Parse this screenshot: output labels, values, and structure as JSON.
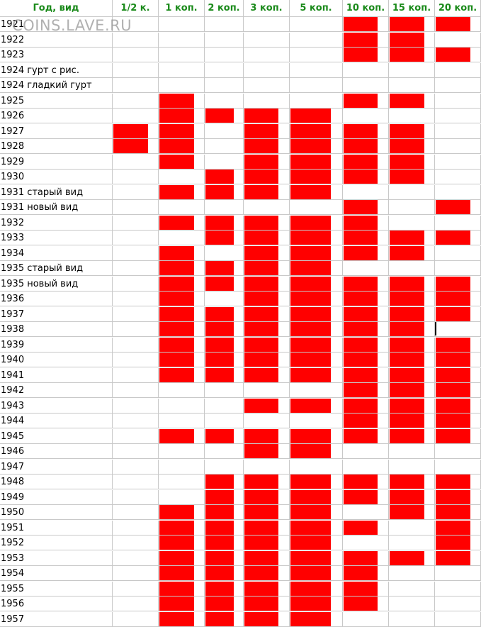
{
  "table": {
    "columns": [
      "Год, вид",
      "1/2 к.",
      "1 коп.",
      "2 коп.",
      "3 коп.",
      "5 коп.",
      "10 коп.",
      "15 коп.",
      "20 коп."
    ],
    "rows": [
      {
        "label": "1921",
        "marks": [
          null,
          null,
          null,
          null,
          null,
          1.0,
          1.0,
          1.0
        ]
      },
      {
        "label": "1922",
        "marks": [
          null,
          null,
          null,
          null,
          null,
          1.0,
          1.0,
          null
        ]
      },
      {
        "label": "1923",
        "marks": [
          null,
          null,
          null,
          null,
          null,
          1.0,
          1.0,
          1.0
        ]
      },
      {
        "label": "1924 гурт с рис.",
        "marks": [
          null,
          null,
          null,
          null,
          null,
          null,
          null,
          null
        ]
      },
      {
        "label": "1924 гладкий гурт",
        "marks": [
          null,
          null,
          null,
          null,
          null,
          null,
          null,
          null
        ]
      },
      {
        "label": "1925",
        "marks": [
          null,
          1.0,
          null,
          null,
          null,
          1.0,
          1.0,
          null
        ]
      },
      {
        "label": "1926",
        "marks": [
          null,
          1.0,
          1.0,
          1.0,
          1.0,
          null,
          null,
          null
        ]
      },
      {
        "label": "1927",
        "marks": [
          1.0,
          1.0,
          null,
          1.0,
          1.0,
          1.0,
          1.0,
          null
        ]
      },
      {
        "label": "1928",
        "marks": [
          1.0,
          1.0,
          null,
          1.0,
          1.0,
          1.0,
          1.0,
          null
        ]
      },
      {
        "label": "1929",
        "marks": [
          null,
          1.0,
          null,
          1.0,
          1.0,
          1.0,
          1.0,
          null
        ]
      },
      {
        "label": "1930",
        "marks": [
          null,
          null,
          1.0,
          1.0,
          1.0,
          1.0,
          1.0,
          null
        ]
      },
      {
        "label": "1931 старый вид",
        "marks": [
          null,
          1.0,
          1.0,
          1.0,
          1.0,
          null,
          null,
          null
        ]
      },
      {
        "label": "1931 новый вид",
        "marks": [
          null,
          null,
          null,
          null,
          null,
          1.0,
          null,
          1.0
        ]
      },
      {
        "label": "1932",
        "marks": [
          null,
          1.0,
          1.0,
          1.0,
          1.0,
          1.0,
          null,
          null
        ]
      },
      {
        "label": "1933",
        "marks": [
          null,
          null,
          1.0,
          1.0,
          1.0,
          1.0,
          1.0,
          1.0
        ]
      },
      {
        "label": "1934",
        "marks": [
          null,
          1.0,
          null,
          1.0,
          1.0,
          1.0,
          1.0,
          null
        ]
      },
      {
        "label": "1935 старый вид",
        "marks": [
          null,
          1.0,
          1.0,
          1.0,
          1.0,
          null,
          null,
          null
        ]
      },
      {
        "label": "1935 новый вид",
        "marks": [
          null,
          1.0,
          1.0,
          1.0,
          1.0,
          1.0,
          1.0,
          1.0
        ]
      },
      {
        "label": "1936",
        "marks": [
          null,
          1.0,
          null,
          1.0,
          1.0,
          1.0,
          1.0,
          1.0
        ]
      },
      {
        "label": "1937",
        "marks": [
          null,
          1.0,
          1.0,
          1.0,
          1.0,
          1.0,
          1.0,
          1.0
        ]
      },
      {
        "label": "1938",
        "marks": [
          null,
          1.0,
          1.0,
          1.0,
          1.0,
          1.0,
          1.0,
          null
        ]
      },
      {
        "label": "1939",
        "marks": [
          null,
          1.0,
          1.0,
          1.0,
          1.0,
          1.0,
          1.0,
          1.0
        ]
      },
      {
        "label": "1940",
        "marks": [
          null,
          1.0,
          1.0,
          1.0,
          1.0,
          1.0,
          1.0,
          1.0
        ]
      },
      {
        "label": "1941",
        "marks": [
          null,
          1.0,
          1.0,
          1.0,
          1.0,
          1.0,
          1.0,
          1.0
        ]
      },
      {
        "label": "1942",
        "marks": [
          null,
          null,
          null,
          null,
          null,
          1.0,
          1.0,
          1.0
        ]
      },
      {
        "label": "1943",
        "marks": [
          null,
          null,
          null,
          1.0,
          1.0,
          1.0,
          1.0,
          1.0
        ]
      },
      {
        "label": "1944",
        "marks": [
          null,
          null,
          null,
          null,
          null,
          1.0,
          1.0,
          1.0
        ]
      },
      {
        "label": "1945",
        "marks": [
          null,
          1.0,
          1.0,
          1.0,
          1.0,
          1.0,
          1.0,
          1.0
        ]
      },
      {
        "label": "1946",
        "marks": [
          null,
          null,
          null,
          1.0,
          1.0,
          null,
          null,
          null
        ]
      },
      {
        "label": "1947",
        "marks": [
          null,
          null,
          null,
          null,
          null,
          null,
          null,
          null
        ]
      },
      {
        "label": "1948",
        "marks": [
          null,
          null,
          1.0,
          1.0,
          1.0,
          1.0,
          1.0,
          1.0
        ]
      },
      {
        "label": "1949",
        "marks": [
          null,
          null,
          1.0,
          1.0,
          1.0,
          1.0,
          1.0,
          1.0
        ]
      },
      {
        "label": "1950",
        "marks": [
          null,
          1.0,
          1.0,
          1.0,
          1.0,
          null,
          1.0,
          1.0
        ]
      },
      {
        "label": "1951",
        "marks": [
          null,
          1.0,
          1.0,
          1.0,
          1.0,
          1.0,
          null,
          1.0
        ]
      },
      {
        "label": "1952",
        "marks": [
          null,
          1.0,
          1.0,
          1.0,
          1.0,
          null,
          null,
          1.0
        ]
      },
      {
        "label": "1953",
        "marks": [
          null,
          1.0,
          1.0,
          1.0,
          1.0,
          1.0,
          1.0,
          1.0
        ]
      },
      {
        "label": "1954",
        "marks": [
          null,
          1.0,
          1.0,
          1.0,
          1.0,
          1.0,
          null,
          null
        ]
      },
      {
        "label": "1955",
        "marks": [
          null,
          1.0,
          1.0,
          1.0,
          1.0,
          1.0,
          null,
          null
        ]
      },
      {
        "label": "1956",
        "marks": [
          null,
          1.0,
          1.0,
          1.0,
          1.0,
          1.0,
          null,
          null
        ]
      },
      {
        "label": "1957",
        "marks": [
          null,
          1.0,
          1.0,
          1.0,
          1.0,
          null,
          null,
          null
        ]
      }
    ]
  },
  "watermark": "COINS.LAVE.RU",
  "colors": {
    "header_text": "#1a8a1a",
    "mark": "#ff0000",
    "grid": "#c8c8c8"
  }
}
